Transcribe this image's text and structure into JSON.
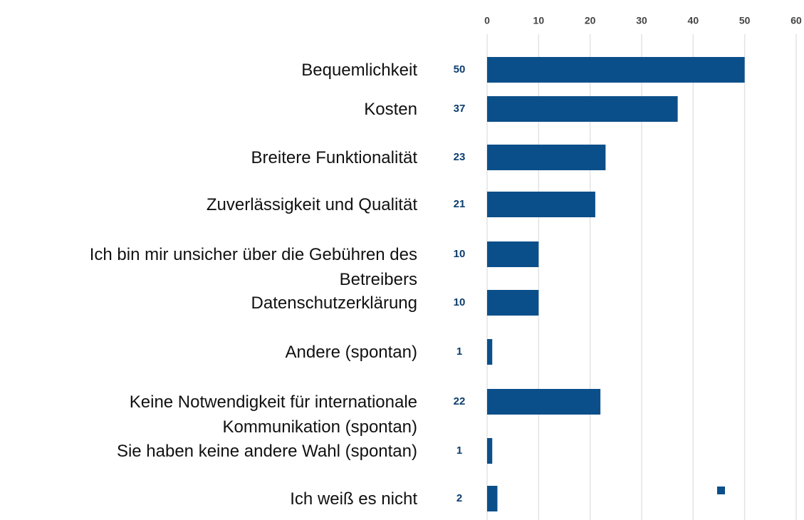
{
  "chart_data": {
    "type": "bar",
    "orientation": "horizontal",
    "categories": [
      "Bequemlichkeit",
      "Kosten",
      "Breitere Funktionalität",
      "Zuverlässigkeit und Qualität",
      "Ich bin mir unsicher über die Gebühren des\nBetreibers",
      "Datenschutzerklärung",
      "Andere (spontan)",
      "Keine Notwendigkeit für internationale\nKommunikation (spontan)",
      "Sie haben keine andere Wahl (spontan)",
      "Ich weiß es nicht"
    ],
    "values": [
      50,
      37,
      23,
      21,
      10,
      10,
      1,
      22,
      1,
      2
    ],
    "color": "#0b4f8a",
    "xlim": [
      0,
      60
    ],
    "xticks": [
      0,
      10,
      20,
      30,
      40,
      50,
      60
    ],
    "grid": true
  }
}
